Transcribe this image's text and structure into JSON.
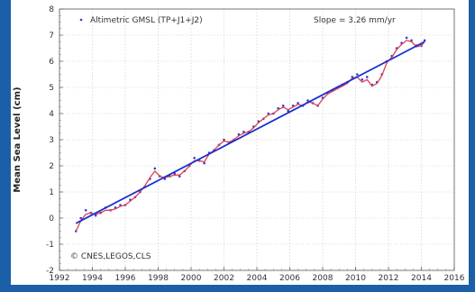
{
  "chart_data": {
    "type": "line",
    "title": "",
    "xlabel": "",
    "ylabel": "Mean Sea Level (cm)",
    "xlim": [
      1992,
      2016
    ],
    "ylim": [
      -2,
      8
    ],
    "x_ticks": [
      "1992",
      "1994",
      "1996",
      "1998",
      "2000",
      "2002",
      "2004",
      "2006",
      "2008",
      "2010",
      "2012",
      "2014",
      "2016"
    ],
    "y_ticks": [
      "-2",
      "-1",
      "0",
      "1",
      "2",
      "3",
      "4",
      "5",
      "6",
      "7",
      "8"
    ],
    "grid": true,
    "legend_label": "Altimetric GMSL (TP+J1+J2)",
    "slope_text": "Slope = 3.26 mm/yr",
    "credit_text": "© CNES,LEGOS,CLS",
    "colors": {
      "points": "#2a3fd6",
      "smoothed": "#e0404a",
      "trend": "#1a2fd0",
      "frame": "#1a5fa8"
    },
    "series": [
      {
        "name": "Altimetric GMSL (TP+J1+J2)",
        "kind": "scatter",
        "x": [
          1993.0,
          1993.3,
          1993.6,
          1993.9,
          1994.2,
          1994.5,
          1994.8,
          1995.1,
          1995.4,
          1995.7,
          1996.0,
          1996.3,
          1996.6,
          1996.9,
          1997.2,
          1997.5,
          1997.8,
          1998.1,
          1998.4,
          1998.7,
          1999.0,
          1999.3,
          1999.6,
          1999.9,
          2000.2,
          2000.5,
          2000.8,
          2001.1,
          2001.4,
          2001.7,
          2002.0,
          2002.3,
          2002.6,
          2002.9,
          2003.2,
          2003.5,
          2003.8,
          2004.1,
          2004.4,
          2004.7,
          2005.0,
          2005.3,
          2005.6,
          2005.9,
          2006.2,
          2006.5,
          2006.8,
          2007.1,
          2007.4,
          2007.7,
          2008.0,
          2008.3,
          2008.6,
          2008.9,
          2009.2,
          2009.5,
          2009.8,
          2010.1,
          2010.4,
          2010.7,
          2011.0,
          2011.3,
          2011.6,
          2011.9,
          2012.2,
          2012.5,
          2012.8,
          2013.1,
          2013.4,
          2013.7,
          2014.0,
          2014.2
        ],
        "y": [
          -0.5,
          0.0,
          0.3,
          0.2,
          0.1,
          0.2,
          0.4,
          0.3,
          0.4,
          0.5,
          0.5,
          0.7,
          0.8,
          1.0,
          1.2,
          1.5,
          1.9,
          1.6,
          1.5,
          1.6,
          1.7,
          1.6,
          1.8,
          2.0,
          2.3,
          2.2,
          2.1,
          2.5,
          2.6,
          2.8,
          3.0,
          2.9,
          3.0,
          3.2,
          3.3,
          3.3,
          3.5,
          3.7,
          3.8,
          4.0,
          4.0,
          4.2,
          4.3,
          4.1,
          4.3,
          4.4,
          4.3,
          4.5,
          4.4,
          4.3,
          4.6,
          4.8,
          4.9,
          5.0,
          5.1,
          5.2,
          5.4,
          5.5,
          5.3,
          5.4,
          5.1,
          5.2,
          5.5,
          6.0,
          6.2,
          6.5,
          6.7,
          6.9,
          6.8,
          6.6,
          6.6,
          6.8
        ]
      },
      {
        "name": "",
        "kind": "smoothed",
        "x": [
          1993.0,
          1993.3,
          1993.6,
          1993.9,
          1994.2,
          1994.5,
          1994.8,
          1995.1,
          1995.4,
          1995.7,
          1996.0,
          1996.3,
          1996.6,
          1996.9,
          1997.2,
          1997.5,
          1997.8,
          1998.1,
          1998.4,
          1998.7,
          1999.0,
          1999.3,
          1999.6,
          1999.9,
          2000.2,
          2000.5,
          2000.8,
          2001.1,
          2001.4,
          2001.7,
          2002.0,
          2002.3,
          2002.6,
          2002.9,
          2003.2,
          2003.5,
          2003.8,
          2004.1,
          2004.4,
          2004.7,
          2005.0,
          2005.3,
          2005.6,
          2005.9,
          2006.2,
          2006.5,
          2006.8,
          2007.1,
          2007.4,
          2007.7,
          2008.0,
          2008.3,
          2008.6,
          2008.9,
          2009.2,
          2009.5,
          2009.8,
          2010.1,
          2010.4,
          2010.7,
          2011.0,
          2011.3,
          2011.6,
          2011.9,
          2012.2,
          2012.5,
          2012.8,
          2013.1,
          2013.4,
          2013.7,
          2014.0,
          2014.2
        ],
        "y": [
          -0.5,
          -0.1,
          0.15,
          0.2,
          0.15,
          0.2,
          0.3,
          0.3,
          0.35,
          0.45,
          0.5,
          0.65,
          0.8,
          1.0,
          1.25,
          1.55,
          1.8,
          1.6,
          1.55,
          1.6,
          1.65,
          1.65,
          1.8,
          2.0,
          2.2,
          2.2,
          2.15,
          2.45,
          2.6,
          2.8,
          2.95,
          2.9,
          3.0,
          3.15,
          3.25,
          3.3,
          3.45,
          3.65,
          3.8,
          3.95,
          4.0,
          4.15,
          4.25,
          4.15,
          4.25,
          4.35,
          4.3,
          4.45,
          4.4,
          4.3,
          4.55,
          4.75,
          4.85,
          4.95,
          5.05,
          5.15,
          5.35,
          5.4,
          5.2,
          5.3,
          5.05,
          5.15,
          5.45,
          5.95,
          6.15,
          6.45,
          6.65,
          6.8,
          6.75,
          6.55,
          6.6,
          6.75
        ]
      },
      {
        "name": "",
        "kind": "trend",
        "x": [
          1993.0,
          2014.2
        ],
        "y": [
          -0.2,
          6.75
        ]
      }
    ]
  }
}
